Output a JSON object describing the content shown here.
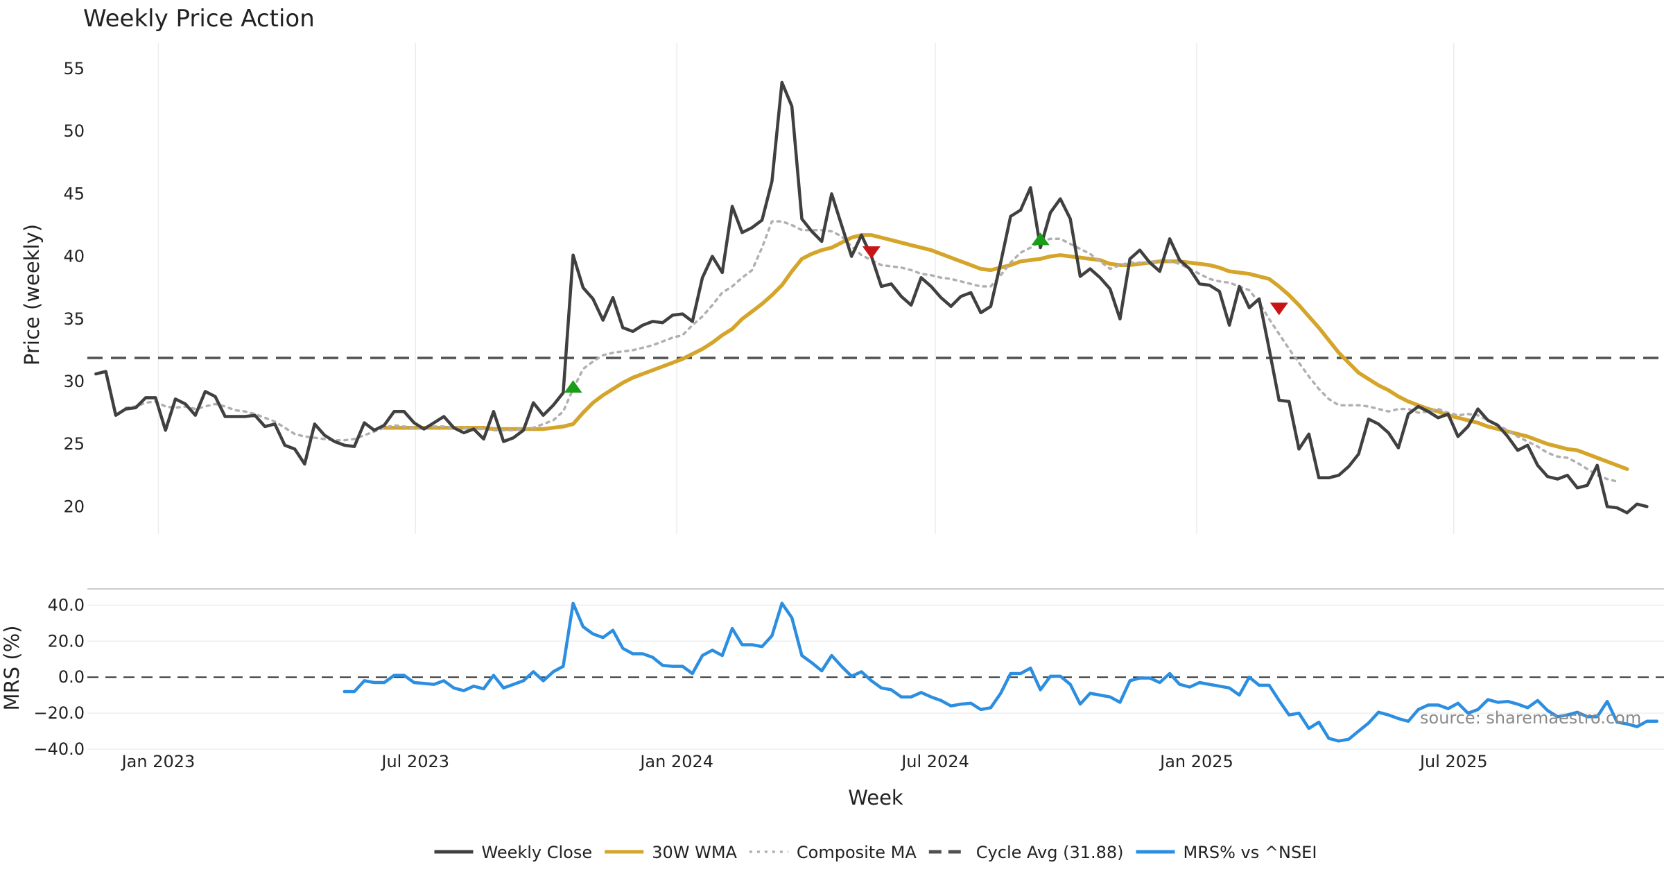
{
  "chart_data": [
    {
      "type": "line",
      "title": "Weekly Price Action",
      "xlabel": "Week",
      "ylabel": "Price (weekly)",
      "ylim": [
        17.8,
        56.5
      ],
      "yticks": [
        20,
        25,
        30,
        35,
        40,
        45,
        50,
        55
      ],
      "grid": true,
      "x_start_date": "2022-11-18",
      "x_step_days": 7,
      "x_range_days": [
        -6,
        1104
      ],
      "xticks": [
        {
          "label": "Jan 2023",
          "days": 44
        },
        {
          "label": "Jul 2023",
          "days": 225
        },
        {
          "label": "Jan 2024",
          "days": 409
        },
        {
          "label": "Jul 2024",
          "days": 591
        },
        {
          "label": "Jan 2025",
          "days": 775
        },
        {
          "label": "Jul 2025",
          "days": 956
        }
      ],
      "series": [
        {
          "name": "Weekly Close",
          "color": "#404040",
          "style": "solid",
          "start_index": 0,
          "values": [
            30.6,
            30.8,
            27.3,
            27.8,
            27.9,
            28.7,
            28.7,
            26.1,
            28.6,
            28.2,
            27.3,
            29.2,
            28.8,
            27.2,
            27.2,
            27.2,
            27.3,
            26.4,
            26.6,
            24.9,
            24.6,
            23.4,
            26.6,
            25.7,
            25.2,
            24.9,
            24.8,
            26.7,
            26.1,
            26.5,
            27.6,
            27.6,
            26.7,
            26.2,
            26.7,
            27.2,
            26.3,
            25.9,
            26.2,
            25.4,
            27.6,
            25.2,
            25.5,
            26.1,
            28.3,
            27.3,
            28.1,
            29.1,
            40.1,
            37.5,
            36.6,
            34.9,
            36.7,
            34.3,
            34.0,
            34.5,
            34.8,
            34.7,
            35.3,
            35.4,
            34.8,
            38.3,
            40.0,
            38.7,
            44.0,
            41.9,
            42.3,
            42.9,
            46.0,
            53.9,
            52.0,
            43.0,
            42.0,
            41.2,
            45.0,
            42.5,
            40.0,
            41.7,
            40.0,
            37.6,
            37.8,
            36.8,
            36.1,
            38.3,
            37.6,
            36.7,
            36.0,
            36.8,
            37.1,
            35.5,
            36.0,
            39.5,
            43.2,
            43.7,
            45.5,
            40.7,
            43.5,
            44.6,
            43.0,
            38.4,
            39.0,
            38.3,
            37.4,
            35.0,
            39.8,
            40.5,
            39.5,
            38.8,
            41.4,
            39.7,
            39.0,
            37.8,
            37.7,
            37.2,
            34.5,
            37.6,
            35.9,
            36.6,
            32.6,
            28.5,
            28.4,
            24.6,
            25.8,
            22.3,
            22.3,
            22.5,
            23.2,
            24.2,
            27.0,
            26.6,
            25.9,
            24.7,
            27.4,
            28.0,
            27.6,
            27.1,
            27.4,
            25.6,
            26.4,
            27.8,
            26.9,
            26.5,
            25.6,
            24.5,
            24.9,
            23.3,
            22.4,
            22.2,
            22.5,
            21.5,
            21.7,
            23.3,
            20.0,
            19.9,
            19.5,
            20.2,
            20.0
          ]
        },
        {
          "name": "30W WMA",
          "color": "#d4a52a",
          "style": "solid",
          "start_index": 29,
          "values": [
            26.3,
            26.3,
            26.3,
            26.3,
            26.3,
            26.3,
            26.3,
            26.3,
            26.3,
            26.3,
            26.3,
            26.2,
            26.2,
            26.2,
            26.2,
            26.2,
            26.2,
            26.3,
            26.4,
            26.6,
            27.5,
            28.3,
            28.9,
            29.4,
            29.9,
            30.3,
            30.6,
            30.9,
            31.2,
            31.5,
            31.8,
            32.2,
            32.6,
            33.1,
            33.7,
            34.2,
            35.0,
            35.6,
            36.2,
            36.9,
            37.7,
            38.8,
            39.8,
            40.2,
            40.5,
            40.7,
            41.1,
            41.5,
            41.7,
            41.7,
            41.5,
            41.3,
            41.1,
            40.9,
            40.7,
            40.5,
            40.2,
            39.9,
            39.6,
            39.3,
            39.0,
            38.9,
            39.1,
            39.3,
            39.6,
            39.7,
            39.8,
            40.0,
            40.1,
            40.0,
            39.9,
            39.8,
            39.7,
            39.4,
            39.3,
            39.3,
            39.4,
            39.5,
            39.6,
            39.6,
            39.6,
            39.5,
            39.4,
            39.3,
            39.1,
            38.8,
            38.7,
            38.6,
            38.4,
            38.2,
            37.6,
            36.9,
            36.1,
            35.2,
            34.3,
            33.3,
            32.3,
            31.5,
            30.7,
            30.2,
            29.7,
            29.3,
            28.8,
            28.4,
            28.1,
            27.8,
            27.6,
            27.3,
            27.1,
            26.9,
            26.7,
            26.4,
            26.2,
            26.0,
            25.8,
            25.6,
            25.3,
            25.0,
            24.8,
            24.6,
            24.5,
            24.2,
            23.9,
            23.6,
            23.3,
            23.0
          ]
        },
        {
          "name": "Composite MA",
          "color": "#b0b0b0",
          "style": "dotted",
          "start_index": 3,
          "values": [
            27.9,
            28.0,
            28.3,
            28.4,
            28.0,
            27.9,
            28.0,
            27.8,
            28.0,
            28.2,
            28.0,
            27.7,
            27.6,
            27.4,
            27.1,
            26.8,
            26.3,
            25.8,
            25.6,
            25.5,
            25.4,
            25.3,
            25.3,
            25.4,
            25.7,
            26.0,
            26.3,
            26.5,
            26.4,
            26.3,
            26.3,
            26.4,
            26.4,
            26.3,
            26.3,
            26.2,
            26.2,
            26.1,
            26.1,
            26.1,
            26.2,
            26.3,
            26.6,
            26.9,
            27.6,
            29.4,
            31.0,
            31.6,
            32.1,
            32.3,
            32.4,
            32.5,
            32.7,
            32.9,
            33.2,
            33.5,
            33.7,
            34.5,
            35.2,
            36.1,
            37.1,
            37.6,
            38.3,
            38.9,
            40.7,
            42.8,
            42.8,
            42.5,
            42.1,
            42.1,
            42.1,
            42.0,
            41.6,
            40.8,
            40.1,
            39.7,
            39.3,
            39.2,
            39.1,
            38.9,
            38.6,
            38.5,
            38.3,
            38.2,
            38.0,
            37.8,
            37.6,
            37.6,
            38.5,
            39.5,
            40.3,
            40.7,
            41.2,
            41.4,
            41.4,
            41.0,
            40.6,
            40.2,
            39.6,
            39.0,
            39.3,
            39.5,
            39.5,
            39.5,
            39.7,
            39.6,
            39.4,
            39.0,
            38.6,
            38.2,
            38.0,
            37.9,
            37.6,
            37.3,
            36.3,
            35.0,
            33.8,
            32.6,
            31.5,
            30.4,
            29.4,
            28.6,
            28.1,
            28.1,
            28.1,
            28.0,
            27.8,
            27.6,
            27.8,
            27.8,
            27.5,
            27.6,
            27.8,
            27.5,
            27.3,
            27.4,
            27.3,
            26.9,
            26.5,
            26.1,
            25.6,
            25.2,
            24.8,
            24.3,
            24.0,
            23.9,
            23.5,
            23.0,
            22.5,
            22.2,
            22.0
          ]
        },
        {
          "name": "Cycle Avg (31.88)",
          "color": "#505050",
          "style": "dashed",
          "constant": 31.88
        }
      ],
      "markers": [
        {
          "kind": "buy",
          "index": 48,
          "value": 29.6,
          "color": "#1a9e1a"
        },
        {
          "kind": "sell",
          "index": 78,
          "value": 40.3,
          "color": "#c81414"
        },
        {
          "kind": "buy",
          "index": 95,
          "value": 41.4,
          "color": "#1a9e1a"
        },
        {
          "kind": "sell",
          "index": 119,
          "value": 35.8,
          "color": "#c81414"
        }
      ]
    },
    {
      "type": "line",
      "xlabel": "Week",
      "ylabel": "MRS (%)",
      "ylim": [
        -40,
        44
      ],
      "yticks": [
        -40,
        -20,
        0,
        20,
        40
      ],
      "ytick_labels": [
        "−40.0",
        "−20.0",
        "0.0",
        "20.0",
        "40.0"
      ],
      "zero_line": true,
      "series": [
        {
          "name": "MRS% vs ^NSEI",
          "color": "#2b8ee0",
          "style": "solid",
          "start_index": 25,
          "values": [
            -8,
            -8,
            -2,
            -3,
            -3,
            1,
            1,
            -3,
            -3.5,
            -4,
            -2,
            -6,
            -7.5,
            -5,
            -6.5,
            1,
            -6,
            -4,
            -2,
            3,
            -2,
            3,
            6,
            41,
            28,
            24,
            22,
            26,
            16,
            13,
            13,
            11,
            6.5,
            6,
            6,
            2,
            12,
            15,
            12,
            27,
            18,
            18,
            17,
            23,
            41,
            33,
            12,
            8,
            3.5,
            12,
            6,
            0.5,
            3,
            -2,
            -6,
            -7,
            -11,
            -11,
            -8.5,
            -11,
            -13,
            -16,
            -15,
            -14.5,
            -18,
            -17,
            -9,
            2,
            2,
            5,
            -7,
            0.5,
            0.5,
            -4,
            -15,
            -9,
            -10,
            -11,
            -14,
            -2,
            -0.5,
            -0.5,
            -3,
            2,
            -4,
            -5.5,
            -3,
            -4,
            -5,
            -6,
            -10,
            0,
            -4.5,
            -4.5,
            -13,
            -21,
            -20,
            -28.5,
            -25,
            -34,
            -35.5,
            -34.5,
            -30,
            -25.5,
            -19.5,
            -21,
            -23,
            -24.5,
            -18,
            -15.5,
            -15.5,
            -17.5,
            -14.5,
            -20,
            -18,
            -12.5,
            -14,
            -13.5,
            -15,
            -17,
            -13,
            -18.5,
            -22,
            -21,
            -19.5,
            -22,
            -22,
            -13.5,
            -25,
            -26,
            -27.5,
            -24.5,
            -24.5
          ]
        }
      ],
      "annotation": "source: sharemaestro.com"
    }
  ],
  "legend": [
    {
      "label": "Weekly Close",
      "color": "#404040",
      "style": "solid"
    },
    {
      "label": "30W WMA",
      "color": "#d4a52a",
      "style": "solid"
    },
    {
      "label": "Composite MA",
      "color": "#b0b0b0",
      "style": "dotted"
    },
    {
      "label": "Cycle Avg (31.88)",
      "color": "#505050",
      "style": "dashed"
    },
    {
      "label": "MRS% vs ^NSEI",
      "color": "#2b8ee0",
      "style": "solid"
    }
  ]
}
